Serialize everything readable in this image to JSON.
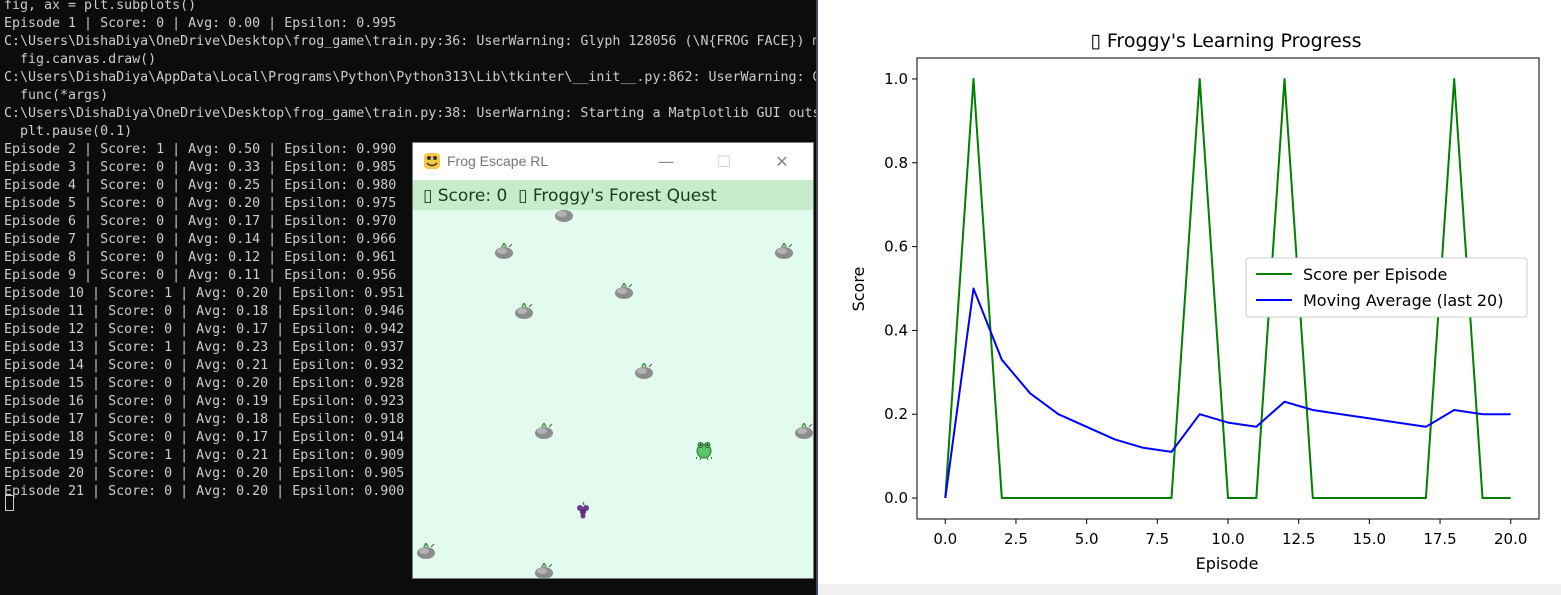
{
  "terminal": {
    "lines": [
      "fig, ax = plt.subplots()",
      "Episode 1 | Score: 0 | Avg: 0.00 | Epsilon: 0.995",
      "C:\\Users\\DishaDiya\\OneDrive\\Desktop\\frog_game\\train.py:36: UserWarning: Glyph 128056 (\\N{FROG FACE}) m",
      "  fig.canvas.draw()",
      "C:\\Users\\DishaDiya\\AppData\\Local\\Programs\\Python\\Python313\\Lib\\tkinter\\__init__.py:862: UserWarning: G",
      "  func(*args)",
      "C:\\Users\\DishaDiya\\OneDrive\\Desktop\\frog_game\\train.py:38: UserWarning: Starting a Matplotlib GUI outs",
      "  plt.pause(0.1)",
      "Episode 2 | Score: 1 | Avg: 0.50 | Epsilon: 0.990",
      "Episode 3 | Score: 0 | Avg: 0.33 | Epsilon: 0.985",
      "Episode 4 | Score: 0 | Avg: 0.25 | Epsilon: 0.980",
      "Episode 5 | Score: 0 | Avg: 0.20 | Epsilon: 0.975",
      "Episode 6 | Score: 0 | Avg: 0.17 | Epsilon: 0.970",
      "Episode 7 | Score: 0 | Avg: 0.14 | Epsilon: 0.966",
      "Episode 8 | Score: 0 | Avg: 0.12 | Epsilon: 0.961",
      "Episode 9 | Score: 0 | Avg: 0.11 | Epsilon: 0.956",
      "Episode 10 | Score: 1 | Avg: 0.20 | Epsilon: 0.951",
      "Episode 11 | Score: 0 | Avg: 0.18 | Epsilon: 0.946",
      "Episode 12 | Score: 0 | Avg: 0.17 | Epsilon: 0.942",
      "Episode 13 | Score: 1 | Avg: 0.23 | Epsilon: 0.937",
      "Episode 14 | Score: 0 | Avg: 0.21 | Epsilon: 0.932",
      "Episode 15 | Score: 0 | Avg: 0.20 | Epsilon: 0.928",
      "Episode 16 | Score: 0 | Avg: 0.19 | Epsilon: 0.923",
      "Episode 17 | Score: 0 | Avg: 0.18 | Epsilon: 0.918",
      "Episode 18 | Score: 0 | Avg: 0.17 | Epsilon: 0.914",
      "Episode 19 | Score: 1 | Avg: 0.21 | Epsilon: 0.909",
      "Episode 20 | Score: 0 | Avg: 0.20 | Epsilon: 0.905",
      "Episode 21 | Score: 0 | Avg: 0.20 | Epsilon: 0.900"
    ]
  },
  "game_window": {
    "title": "Frog Escape RL",
    "hud_text": "▯ Score: 0  ▯ Froggy's Forest Quest",
    "minimize_glyph": "—",
    "maximize_glyph": "☐",
    "close_glyph": "✕",
    "field_bg": "#e2fbee",
    "hud_bg": "#c6eccc"
  },
  "chart_window": {
    "title": "▯ Froggy's Learning Progress",
    "chart_data": {
      "type": "line",
      "title": "▯ Froggy's Learning Progress",
      "xlabel": "Episode",
      "ylabel": "Score",
      "xlim": [
        -1,
        21
      ],
      "ylim": [
        -0.05,
        1.05
      ],
      "xticks": [
        0,
        2.5,
        5,
        7.5,
        10,
        12.5,
        15,
        17.5,
        20
      ],
      "xtick_labels": [
        "0.0",
        "2.5",
        "5.0",
        "7.5",
        "10.0",
        "12.5",
        "15.0",
        "17.5",
        "20.0"
      ],
      "yticks": [
        0,
        0.2,
        0.4,
        0.6,
        0.8,
        1.0
      ],
      "ytick_labels": [
        "0.0",
        "0.2",
        "0.4",
        "0.6",
        "0.8",
        "1.0"
      ],
      "legend_position": "center-right",
      "grid": false,
      "x": [
        0,
        1,
        2,
        3,
        4,
        5,
        6,
        7,
        8,
        9,
        10,
        11,
        12,
        13,
        14,
        15,
        16,
        17,
        18,
        19,
        20
      ],
      "series": [
        {
          "name": "Score per Episode",
          "color": "#008000",
          "values": [
            0,
            1,
            0,
            0,
            0,
            0,
            0,
            0,
            0,
            1,
            0,
            0,
            1,
            0,
            0,
            0,
            0,
            0,
            1,
            0,
            0
          ]
        },
        {
          "name": "Moving Average (last 20)",
          "color": "#0000ff",
          "values": [
            0,
            0.5,
            0.33,
            0.25,
            0.2,
            0.17,
            0.14,
            0.12,
            0.11,
            0.2,
            0.18,
            0.17,
            0.23,
            0.21,
            0.2,
            0.19,
            0.18,
            0.17,
            0.21,
            0.2,
            0.2
          ]
        }
      ]
    }
  }
}
